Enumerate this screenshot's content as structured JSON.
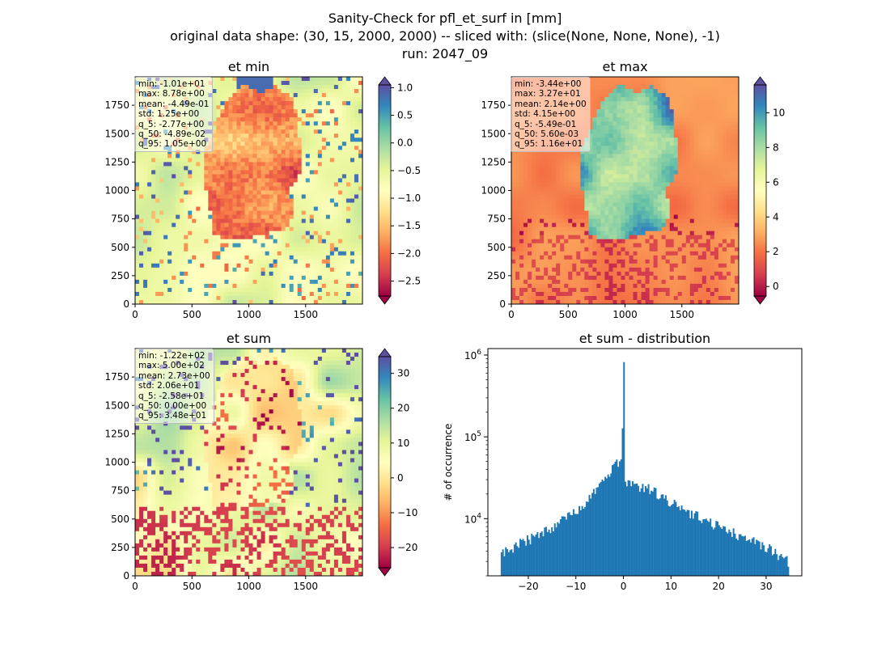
{
  "suptitle": {
    "line1": "Sanity-Check for pfl_et_surf in [mm]",
    "line2": "original data shape: (30, 15, 2000, 2000) -- sliced with: (slice(None, None, None), -1)",
    "line3": "run: 2047_09"
  },
  "panels": [
    {
      "title": "et min",
      "stats": [
        "min: -1.01e+01",
        "max: 8.78e+00",
        "mean: -4.49e-01",
        "std: 1.25e+00",
        "q_5: -2.77e+00",
        "q_50: -4.89e-02",
        "q_95: 1.05e+00"
      ],
      "x_ticks": [
        "0",
        "500",
        "1000",
        "1500"
      ],
      "y_ticks": [
        "0",
        "250",
        "500",
        "750",
        "1000",
        "1250",
        "1500",
        "1750"
      ],
      "colorbar": {
        "vmin": -2.77,
        "vmax": 1.05,
        "ticks": [
          1.0,
          0.5,
          0.0,
          -0.5,
          -1.0,
          -1.5,
          -2.0,
          -2.5
        ],
        "tick_labels": [
          "1.0",
          "0.5",
          "0.0",
          "−0.5",
          "−1.0",
          "−1.5",
          "−2.0",
          "−2.5"
        ]
      }
    },
    {
      "title": "et max",
      "stats": [
        "min: -3.44e+00",
        "max: 3.27e+01",
        "mean: 2.14e+00",
        "std: 4.15e+00",
        "q_5: -5.49e-01",
        "q_50: 5.60e-03",
        "q_95: 1.16e+01"
      ],
      "x_ticks": [
        "0",
        "500",
        "1000",
        "1500"
      ],
      "y_ticks": [
        "0",
        "250",
        "500",
        "750",
        "1000",
        "1250",
        "1500",
        "1750"
      ],
      "colorbar": {
        "vmin": -0.549,
        "vmax": 11.6,
        "ticks": [
          10,
          8,
          6,
          4,
          2,
          0
        ],
        "tick_labels": [
          "10",
          "8",
          "6",
          "4",
          "2",
          "0"
        ]
      }
    },
    {
      "title": "et sum",
      "stats": [
        "min: -1.22e+02",
        "max: 5.00e+02",
        "mean: 2.73e+00",
        "std: 2.06e+01",
        "q_5: -2.58e+01",
        "q_50: 0.00e+00",
        "q_95: 3.48e+01"
      ],
      "x_ticks": [
        "0",
        "500",
        "1000",
        "1500"
      ],
      "y_ticks": [
        "0",
        "250",
        "500",
        "750",
        "1000",
        "1250",
        "1500",
        "1750"
      ],
      "colorbar": {
        "vmin": -25.8,
        "vmax": 34.8,
        "ticks": [
          30,
          20,
          10,
          0,
          -10,
          -20
        ],
        "tick_labels": [
          "30",
          "20",
          "10",
          "0",
          "−10",
          "−20"
        ]
      }
    }
  ],
  "chart_data": [
    {
      "type": "heatmap",
      "title": "et min",
      "xlim": [
        0,
        2000
      ],
      "ylim": [
        0,
        2000
      ],
      "colormap": "Spectral",
      "clim": [
        -2.77,
        1.05
      ]
    },
    {
      "type": "heatmap",
      "title": "et max",
      "xlim": [
        0,
        2000
      ],
      "ylim": [
        0,
        2000
      ],
      "colormap": "Spectral",
      "clim": [
        -0.549,
        11.6
      ]
    },
    {
      "type": "heatmap",
      "title": "et sum",
      "xlim": [
        0,
        2000
      ],
      "ylim": [
        0,
        2000
      ],
      "colormap": "Spectral",
      "clim": [
        -25.8,
        34.8
      ]
    },
    {
      "type": "bar",
      "title": "et sum - distribution",
      "xlabel": "",
      "ylabel": "# of occurrence",
      "yscale": "log",
      "xlim": [
        -28.5,
        37.5
      ],
      "ylim": [
        2000,
        1200000
      ],
      "x_ticks": [
        -20,
        -10,
        0,
        10,
        20,
        30
      ],
      "x_tick_labels": [
        "−20",
        "−10",
        "0",
        "10",
        "20",
        "30"
      ],
      "y_ticks": [
        10000,
        100000,
        1000000
      ],
      "y_tick_labels": [
        "10^4",
        "10^5",
        "10^6"
      ],
      "color": "#1f77b4",
      "bins": {
        "start": -25.8,
        "end": 34.8,
        "width": 0.303
      },
      "peak_at_zero": 820000,
      "envelope": [
        [
          -25.8,
          3800
        ],
        [
          -20,
          5500
        ],
        [
          -15,
          8000
        ],
        [
          -10,
          12000
        ],
        [
          -5,
          25000
        ],
        [
          -2,
          45000
        ],
        [
          -0.3,
          52000
        ],
        [
          0,
          820000
        ],
        [
          0.3,
          26000
        ],
        [
          3,
          25000
        ],
        [
          5,
          24000
        ],
        [
          10,
          16000
        ],
        [
          15,
          11000
        ],
        [
          20,
          8000
        ],
        [
          25,
          6000
        ],
        [
          30,
          4500
        ],
        [
          34.8,
          3000
        ]
      ]
    }
  ]
}
